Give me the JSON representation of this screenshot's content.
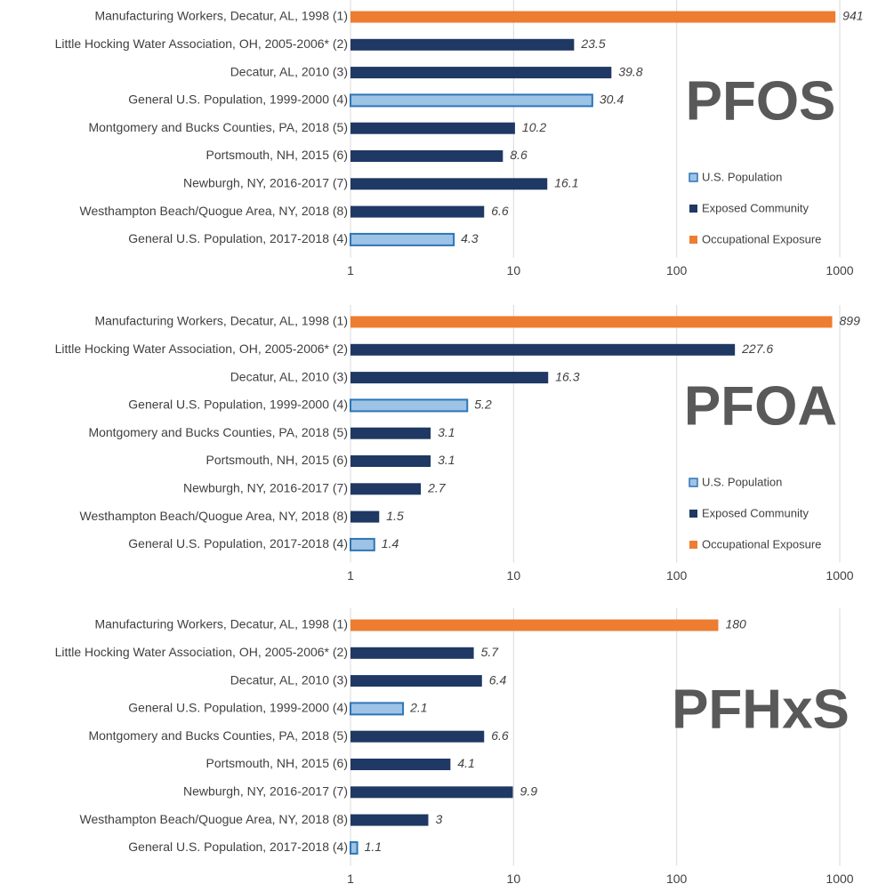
{
  "chart_data": [
    {
      "type": "bar",
      "orientation": "horizontal",
      "title": "PFOS",
      "log_scale": true,
      "grid": true,
      "categories": [
        "Manufacturing Workers, Decatur, AL, 1998 (1)",
        "Little Hocking Water Association, OH, 2005-2006* (2)",
        "Decatur, AL, 2010 (3)",
        "General U.S. Population, 1999-2000 (4)",
        "Montgomery and Bucks Counties, PA, 2018 (5)",
        "Portsmouth, NH, 2015 (6)",
        "Newburgh, NY, 2016-2017 (7)",
        "Westhampton Beach/Quogue Area, NY, 2018 (8)",
        "General U.S. Population, 2017-2018 (4)"
      ],
      "values": [
        941,
        23.5,
        39.8,
        30.4,
        10.2,
        8.6,
        16.1,
        6.6,
        4.3
      ],
      "colors": [
        "#ed7d31",
        "#1f3864",
        "#1f3864",
        "#9dc3e6",
        "#1f3864",
        "#1f3864",
        "#1f3864",
        "#1f3864",
        "#9dc3e6"
      ],
      "xlim": [
        1,
        1000
      ],
      "xticks": [
        1,
        10,
        100,
        1000
      ],
      "legend": [
        {
          "label": "U.S. Population",
          "color": "#9dc3e6"
        },
        {
          "label": "Exposed Community",
          "color": "#1f3864"
        },
        {
          "label": "Occupational Exposure",
          "color": "#ed7d31"
        }
      ]
    },
    {
      "type": "bar",
      "orientation": "horizontal",
      "title": "PFOA",
      "log_scale": true,
      "grid": true,
      "categories": [
        "Manufacturing Workers, Decatur, AL, 1998 (1)",
        "Little Hocking Water Association, OH, 2005-2006* (2)",
        "Decatur, AL, 2010 (3)",
        "General U.S. Population, 1999-2000 (4)",
        "Montgomery and Bucks Counties, PA, 2018 (5)",
        "Portsmouth, NH, 2015 (6)",
        "Newburgh, NY, 2016-2017 (7)",
        "Westhampton Beach/Quogue Area, NY, 2018 (8)",
        "General U.S. Population, 2017-2018 (4)"
      ],
      "values": [
        899,
        227.6,
        16.3,
        5.2,
        3.1,
        3.1,
        2.7,
        1.5,
        1.4
      ],
      "colors": [
        "#ed7d31",
        "#1f3864",
        "#1f3864",
        "#9dc3e6",
        "#1f3864",
        "#1f3864",
        "#1f3864",
        "#1f3864",
        "#9dc3e6"
      ],
      "xlim": [
        1,
        1000
      ],
      "xticks": [
        1,
        10,
        100,
        1000
      ],
      "legend": [
        {
          "label": "U.S. Population",
          "color": "#9dc3e6"
        },
        {
          "label": "Exposed Community",
          "color": "#1f3864"
        },
        {
          "label": "Occupational Exposure",
          "color": "#ed7d31"
        }
      ]
    },
    {
      "type": "bar",
      "orientation": "horizontal",
      "title": "PFHxS",
      "log_scale": true,
      "grid": true,
      "categories": [
        "Manufacturing Workers, Decatur, AL, 1998 (1)",
        "Little Hocking Water Association, OH, 2005-2006* (2)",
        "Decatur, AL, 2010 (3)",
        "General U.S. Population, 1999-2000 (4)",
        "Montgomery and Bucks Counties, PA, 2018 (5)",
        "Portsmouth, NH, 2015 (6)",
        "Newburgh, NY, 2016-2017 (7)",
        "Westhampton Beach/Quogue Area, NY, 2018 (8)",
        "General U.S. Population, 2017-2018 (4)"
      ],
      "values": [
        180,
        5.7,
        6.4,
        2.1,
        6.6,
        4.1,
        9.9,
        3,
        1.1
      ],
      "colors": [
        "#ed7d31",
        "#1f3864",
        "#1f3864",
        "#9dc3e6",
        "#1f3864",
        "#1f3864",
        "#1f3864",
        "#1f3864",
        "#9dc3e6"
      ],
      "xlim": [
        1,
        1000
      ],
      "xticks": [
        1,
        10,
        100,
        1000
      ]
    }
  ]
}
